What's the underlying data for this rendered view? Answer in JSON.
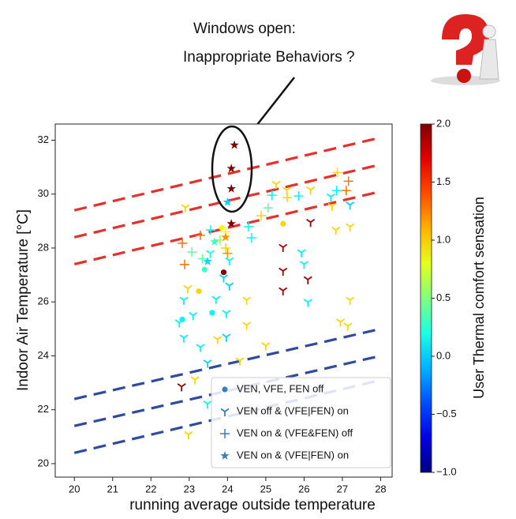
{
  "chart_data": {
    "type": "scatter",
    "annotation": [
      "Windows open:",
      "Inappropriate Behaviors ?"
    ],
    "x_label": "running average outside temperature",
    "y_label": "Indoor Air Temperature [°C]",
    "colorbar_label": "User Thermal comfort sensation",
    "colormap": "jet",
    "colorbar_lim": [
      -1,
      2
    ],
    "colorbar_ticks": [
      {
        "value": 2,
        "label": "2.0"
      },
      {
        "value": 1.5,
        "label": "1.5"
      },
      {
        "value": 1,
        "label": "1.0"
      },
      {
        "value": 0.5,
        "label": "0.5"
      },
      {
        "value": 0,
        "label": "0.0"
      },
      {
        "value": -0.5,
        "label": "−0.5"
      },
      {
        "value": -1,
        "label": "−1.0"
      }
    ],
    "xlim": [
      19.5,
      28.3
    ],
    "ylim": [
      19.5,
      32.6
    ],
    "xticks": [
      20,
      21,
      22,
      23,
      24,
      25,
      26,
      27,
      28
    ],
    "yticks": [
      20,
      22,
      24,
      26,
      28,
      30,
      32
    ],
    "legend": "lower right",
    "legend_color": "#3a7fb8",
    "reference_lines": [
      {
        "x": [
          20,
          28
        ],
        "y": [
          29.4,
          32.1
        ],
        "color": "#e8302a"
      },
      {
        "x": [
          20,
          28
        ],
        "y": [
          28.4,
          31.1
        ],
        "color": "#e8302a"
      },
      {
        "x": [
          20,
          28
        ],
        "y": [
          27.4,
          30.1
        ],
        "color": "#e8302a"
      },
      {
        "x": [
          20,
          28
        ],
        "y": [
          22.4,
          25.0
        ],
        "color": "#2f4aa0"
      },
      {
        "x": [
          20,
          28
        ],
        "y": [
          21.4,
          24.0
        ],
        "color": "#2f4aa0"
      },
      {
        "x": [
          20,
          28
        ],
        "y": [
          20.4,
          23.1
        ],
        "color": "#2f4aa0"
      }
    ],
    "series": [
      {
        "name": "VEN, VFE, FEN off",
        "marker": "o",
        "x": [
          23.85,
          25.45,
          23.9,
          23.25,
          22.82,
          23.6,
          23.4
        ],
        "y": [
          28.75,
          28.9,
          27.1,
          26.4,
          25.35,
          25.6,
          27.2
        ],
        "sensation": [
          0.9,
          1.0,
          2.0,
          1.0,
          0.1,
          0.1,
          0.3
        ]
      },
      {
        "name": "VEN off & (VFE|FEN) on",
        "marker": "1",
        "x": [
          22.8,
          22.98,
          22.96,
          22.86,
          22.74,
          22.86,
          23.29,
          23.48,
          23.48,
          23.15,
          23.74,
          23.97,
          23.97,
          23.7,
          24.05,
          24.05,
          24.5,
          24.5,
          24.32,
          25.0,
          25.27,
          25.55,
          25.45,
          25.45,
          25.45,
          25.93,
          26.0,
          26.1,
          26.1,
          26.17,
          26.17,
          26.73,
          26.83,
          27.2,
          27.2,
          26.95,
          27.14,
          26.7,
          27.2,
          22.9,
          23.1,
          23.55,
          23.9
        ],
        "y": [
          22.86,
          21.08,
          26.5,
          26.07,
          25.23,
          24.67,
          24.32,
          23.74,
          22.22,
          23.12,
          24.61,
          24.7,
          25.58,
          26.1,
          27.53,
          26.6,
          26.07,
          25.14,
          23.82,
          24.38,
          30.37,
          30.15,
          28.03,
          27.15,
          26.42,
          27.83,
          27.4,
          25.99,
          26.83,
          28.96,
          30.16,
          29.55,
          28.67,
          28.79,
          26.07,
          25.26,
          25.11,
          29.9,
          29.6,
          29.5,
          25.5,
          27.8,
          26.9
        ],
        "sensation": [
          1.9,
          1.0,
          1.0,
          0.1,
          0.1,
          0.1,
          0.1,
          0.0,
          0.1,
          1.0,
          1.0,
          0.0,
          0.1,
          0.1,
          0.1,
          0.0,
          1.0,
          1.0,
          1.0,
          1.0,
          1.0,
          1.0,
          1.9,
          1.9,
          1.9,
          0.1,
          0.1,
          0.1,
          1.9,
          1.9,
          1.0,
          1.0,
          1.0,
          1.0,
          1.0,
          1.0,
          1.0,
          0.1,
          0.0,
          1.0,
          0.1,
          0.2,
          0.0
        ]
      },
      {
        "name": "VEN on & (VFE&FEN) off",
        "marker": "+",
        "x": [
          22.82,
          22.88,
          23.29,
          23.07,
          23.56,
          23.8,
          23.95,
          24.55,
          24.63,
          25.06,
          25.16,
          24.88,
          25.56,
          26.87,
          27.16,
          27.1,
          26.85,
          25.86,
          23.95,
          24.0,
          23.35
        ],
        "y": [
          28.18,
          27.39,
          28.47,
          27.85,
          28.67,
          28.3,
          28.6,
          28.79,
          28.38,
          29.49,
          29.96,
          29.2,
          29.87,
          30.8,
          30.48,
          30.13,
          30.13,
          29.93,
          28.0,
          27.8,
          27.6
        ],
        "sensation": [
          1.3,
          1.3,
          1.3,
          0.4,
          0.1,
          0.6,
          0.9,
          0.1,
          0.1,
          0.4,
          0.1,
          1.0,
          1.0,
          1.0,
          1.3,
          1.3,
          0.1,
          0.1,
          1.0,
          1.2,
          0.4
        ]
      },
      {
        "name": "VEN on & (VFE|FEN) on",
        "marker": "*",
        "x": [
          24.18,
          24.1,
          24.1,
          24.0,
          24.1,
          23.66,
          23.95,
          23.48
        ],
        "y": [
          31.82,
          30.95,
          30.2,
          29.7,
          28.9,
          28.23,
          28.4,
          27.5
        ],
        "sensation": [
          2.0,
          2.0,
          2.0,
          0.0,
          2.0,
          0.3,
          1.2,
          0.0
        ]
      }
    ]
  }
}
